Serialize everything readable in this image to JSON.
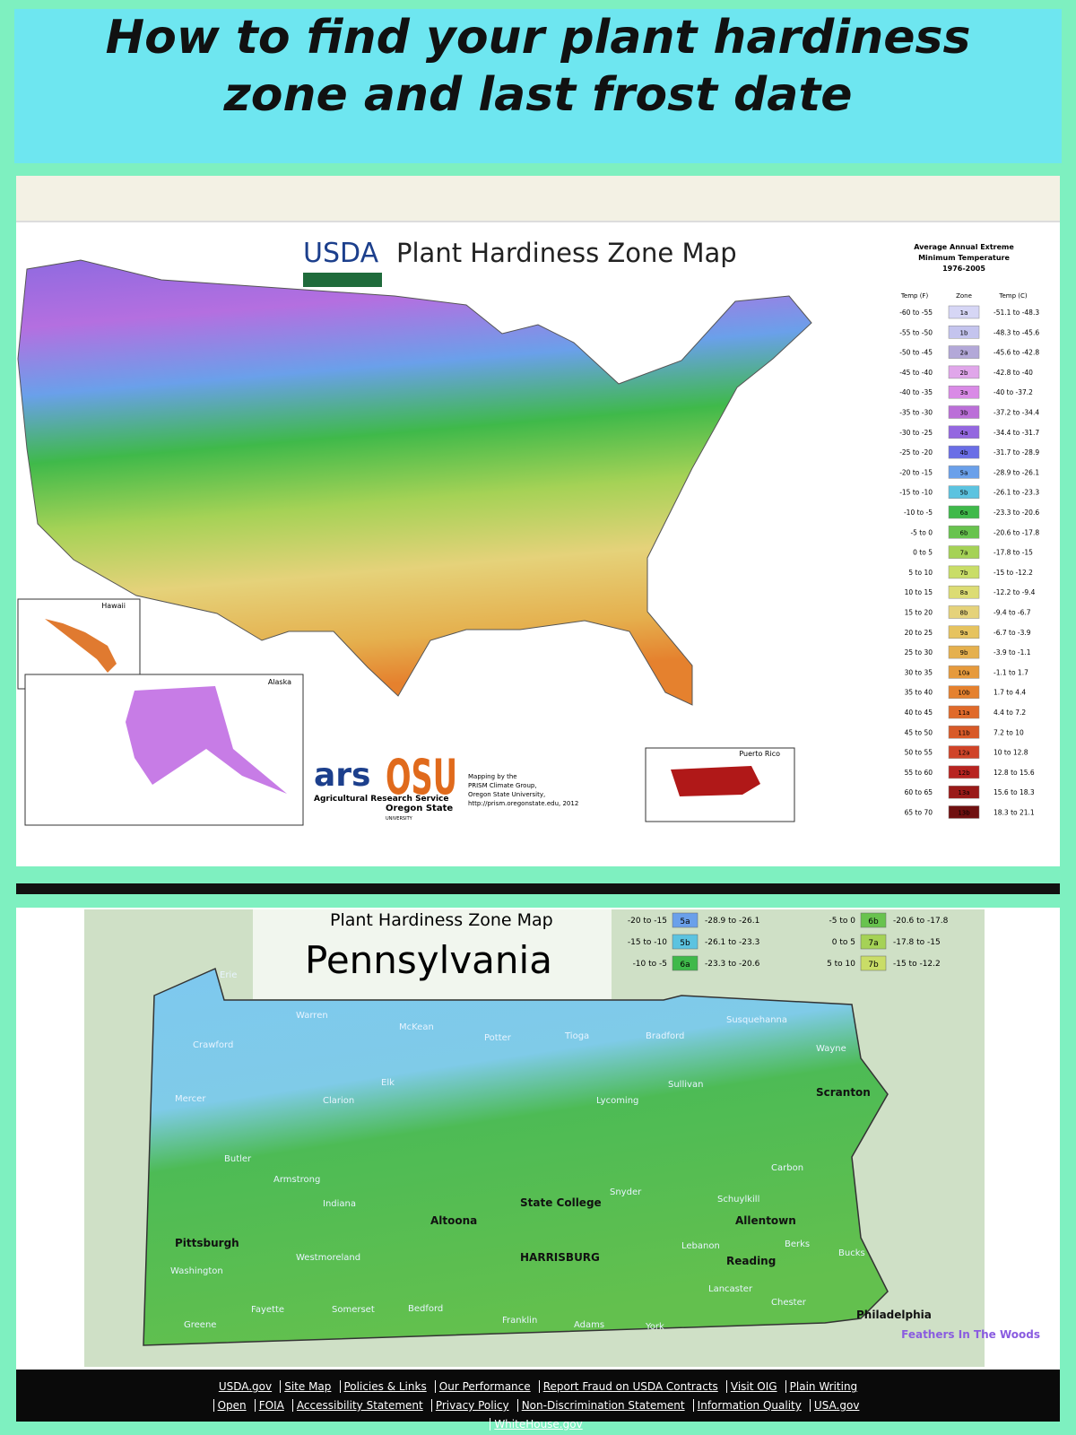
{
  "header": {
    "title_line1": "How to find your plant hardiness",
    "title_line2": "zone and last frost date"
  },
  "usda_map": {
    "logo": "USDA",
    "title": "Plant Hardiness Zone Map",
    "legend_title": [
      "Average Annual Extreme",
      "Minimum Temperature",
      "1976-2005"
    ],
    "legend_headers": [
      "Temp (F)",
      "Zone",
      "Temp (C)"
    ],
    "legend": [
      {
        "temp_f": "-60 to -55",
        "zone": "1a",
        "temp_c": "-51.1 to -48.3",
        "color": "#d6d6f5"
      },
      {
        "temp_f": "-55 to -50",
        "zone": "1b",
        "temp_c": "-48.3 to -45.6",
        "color": "#c4c4ee"
      },
      {
        "temp_f": "-50 to -45",
        "zone": "2a",
        "temp_c": "-45.6 to -42.8",
        "color": "#b3a8d8"
      },
      {
        "temp_f": "-45 to -40",
        "zone": "2b",
        "temp_c": "-42.8 to -40",
        "color": "#e0a6ea"
      },
      {
        "temp_f": "-40 to -35",
        "zone": "3a",
        "temp_c": "-40 to -37.2",
        "color": "#d98ae6"
      },
      {
        "temp_f": "-35 to -30",
        "zone": "3b",
        "temp_c": "-37.2 to -34.4",
        "color": "#bb6fd8"
      },
      {
        "temp_f": "-30 to -25",
        "zone": "4a",
        "temp_c": "-34.4 to -31.7",
        "color": "#9467e0"
      },
      {
        "temp_f": "-25 to -20",
        "zone": "4b",
        "temp_c": "-31.7 to -28.9",
        "color": "#6a6ee6"
      },
      {
        "temp_f": "-20 to -15",
        "zone": "5a",
        "temp_c": "-28.9 to -26.1",
        "color": "#6aa0ea"
      },
      {
        "temp_f": "-15 to -10",
        "zone": "5b",
        "temp_c": "-26.1 to -23.3",
        "color": "#5cc3e0"
      },
      {
        "temp_f": "-10 to -5",
        "zone": "6a",
        "temp_c": "-23.3 to -20.6",
        "color": "#3fb94a"
      },
      {
        "temp_f": "-5 to 0",
        "zone": "6b",
        "temp_c": "-20.6 to -17.8",
        "color": "#68c34e"
      },
      {
        "temp_f": "0 to 5",
        "zone": "7a",
        "temp_c": "-17.8 to -15",
        "color": "#a5d256"
      },
      {
        "temp_f": "5 to 10",
        "zone": "7b",
        "temp_c": "-15 to -12.2",
        "color": "#c9dd67"
      },
      {
        "temp_f": "10 to 15",
        "zone": "8a",
        "temp_c": "-12.2 to -9.4",
        "color": "#dcdc74"
      },
      {
        "temp_f": "15 to 20",
        "zone": "8b",
        "temp_c": "-9.4 to -6.7",
        "color": "#e5d27a"
      },
      {
        "temp_f": "20 to 25",
        "zone": "9a",
        "temp_c": "-6.7 to -3.9",
        "color": "#e6c35f"
      },
      {
        "temp_f": "25 to 30",
        "zone": "9b",
        "temp_c": "-3.9 to -1.1",
        "color": "#e5b04e"
      },
      {
        "temp_f": "30 to 35",
        "zone": "10a",
        "temp_c": "-1.1 to 1.7",
        "color": "#e69a3c"
      },
      {
        "temp_f": "35 to 40",
        "zone": "10b",
        "temp_c": "1.7 to 4.4",
        "color": "#e5812e"
      },
      {
        "temp_f": "40 to 45",
        "zone": "11a",
        "temp_c": "4.4 to 7.2",
        "color": "#e06a2a"
      },
      {
        "temp_f": "45 to 50",
        "zone": "11b",
        "temp_c": "7.2 to 10",
        "color": "#d85a28"
      },
      {
        "temp_f": "50 to 55",
        "zone": "12a",
        "temp_c": "10 to 12.8",
        "color": "#d04428"
      },
      {
        "temp_f": "55 to 60",
        "zone": "12b",
        "temp_c": "12.8 to 15.6",
        "color": "#b82420"
      },
      {
        "temp_f": "60 to 65",
        "zone": "13a",
        "temp_c": "15.6 to 18.3",
        "color": "#9a1a18"
      },
      {
        "temp_f": "65 to 70",
        "zone": "13b",
        "temp_c": "18.3 to 21.1",
        "color": "#701010"
      }
    ],
    "insets": {
      "hawaii": "Hawaii",
      "alaska": "Alaska",
      "puerto_rico": "Puerto Rico"
    },
    "credits": {
      "ars_logo": "ars",
      "ars_name": "Agricultural Research Service",
      "osu_logo": "OSU",
      "osu_name": "Oregon State",
      "osu_sub": "UNIVERSITY",
      "mapping": [
        "Mapping by the",
        "PRISM Climate Group,",
        "Oregon State University,",
        "http://prism.oregonstate.edu, 2012"
      ]
    }
  },
  "pa_map": {
    "title": "Plant Hardiness Zone Map",
    "state": "Pennsylvania",
    "legend": [
      {
        "temp_f": "-20 to -15",
        "zone": "5a",
        "temp_c": "-28.9 to -26.1",
        "color": "#6aa0ea"
      },
      {
        "temp_f": "-15 to -10",
        "zone": "5b",
        "temp_c": "-26.1 to -23.3",
        "color": "#5cc3e0"
      },
      {
        "temp_f": "-10 to -5",
        "zone": "6a",
        "temp_c": "-23.3 to -20.6",
        "color": "#3fb94a"
      },
      {
        "temp_f": "-5 to 0",
        "zone": "6b",
        "temp_c": "-20.6 to -17.8",
        "color": "#68c34e"
      },
      {
        "temp_f": "0 to 5",
        "zone": "7a",
        "temp_c": "-17.8 to -15",
        "color": "#a5d256"
      },
      {
        "temp_f": "5 to 10",
        "zone": "7b",
        "temp_c": "-15 to -12.2",
        "color": "#c9dd67"
      }
    ],
    "places": [
      "Erie",
      "Crawford",
      "Warren",
      "McKean",
      "Potter",
      "Tioga",
      "Bradford",
      "Susquehanna",
      "Wayne",
      "Scranton",
      "Elk",
      "Mercer",
      "Clarion",
      "Lycoming",
      "Sullivan",
      "Butler",
      "Armstrong",
      "Indiana",
      "State College",
      "Altoona",
      "Pittsburgh",
      "Westmoreland",
      "Washington",
      "Fayette",
      "Somerset",
      "Bedford",
      "Greene",
      "Franklin",
      "Adams",
      "York",
      "Lancaster",
      "Chester",
      "Reading",
      "Allentown",
      "Berks",
      "Bucks",
      "Schuylkill",
      "Lebanon",
      "Carbon",
      "Snyder",
      "HARRISBURG",
      "Philadelphia"
    ],
    "watermark": "Feathers In The Woods"
  },
  "footer": {
    "links": [
      "USDA.gov",
      "Site Map",
      "Policies & Links",
      "Our Performance",
      "Report Fraud on USDA Contracts",
      "Visit OIG",
      "Plain Writing",
      "Open",
      "FOIA",
      "Accessibility Statement",
      "Privacy Policy",
      "Non-Discrimination Statement",
      "Information Quality",
      "USA.gov",
      "WhiteHouse.gov"
    ]
  }
}
